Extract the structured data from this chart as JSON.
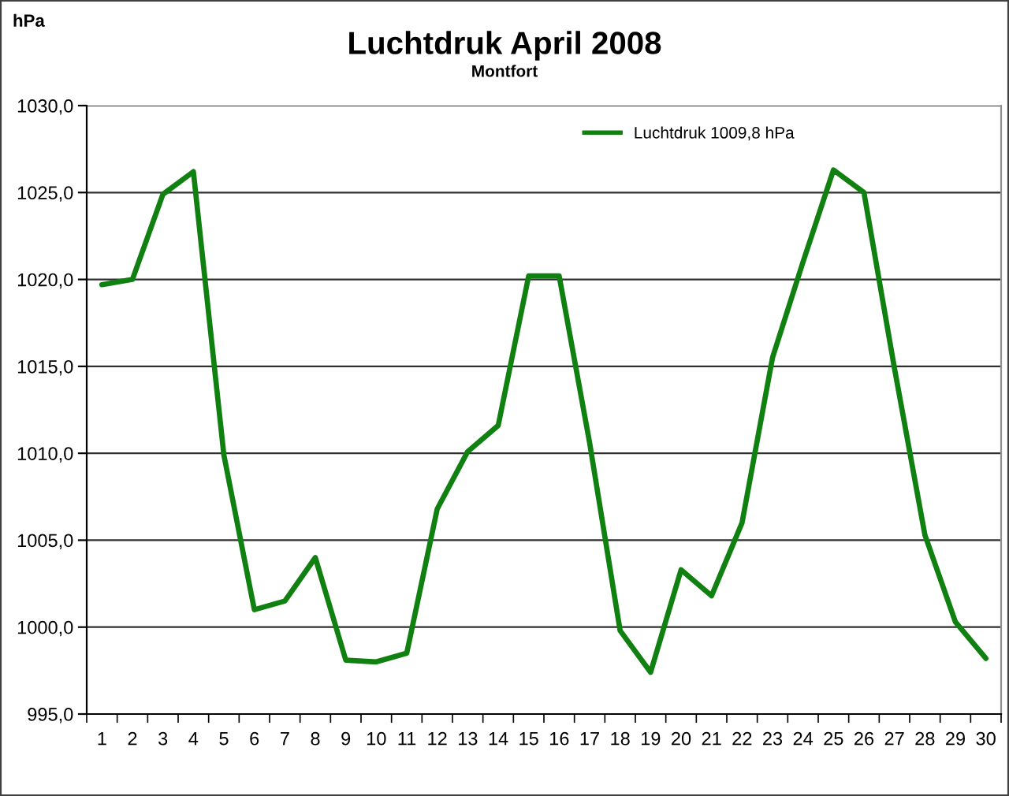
{
  "chart_data": {
    "type": "line",
    "title": "Luchtdruk April 2008",
    "subtitle": "Montfort",
    "ylabel": "hPa",
    "categories": [
      "1",
      "2",
      "3",
      "4",
      "5",
      "6",
      "7",
      "8",
      "9",
      "10",
      "11",
      "12",
      "13",
      "14",
      "15",
      "16",
      "17",
      "18",
      "19",
      "20",
      "21",
      "22",
      "23",
      "24",
      "25",
      "26",
      "27",
      "28",
      "29",
      "30"
    ],
    "series": [
      {
        "name": "Luchtdruk 1009,8 hPa",
        "color": "#108010",
        "values": [
          1019.7,
          1020.0,
          1024.9,
          1026.2,
          1009.9,
          1001.0,
          1001.5,
          1004.0,
          998.1,
          998.0,
          998.5,
          1006.8,
          1010.1,
          1011.6,
          1020.2,
          1020.2,
          1010.6,
          999.8,
          997.4,
          1003.3,
          1001.8,
          1006.0,
          1015.5,
          1021.0,
          1026.3,
          1025.0,
          1014.9,
          1005.3,
          1000.3,
          998.2
        ]
      }
    ],
    "ylim": [
      995,
      1030
    ],
    "yticks": [
      {
        "value": 995,
        "label": "995,0"
      },
      {
        "value": 1000,
        "label": "1000,0"
      },
      {
        "value": 1005,
        "label": "1005,0"
      },
      {
        "value": 1010,
        "label": "1010,0"
      },
      {
        "value": 1015,
        "label": "1015,0"
      },
      {
        "value": 1020,
        "label": "1020,0"
      },
      {
        "value": 1025,
        "label": "1025,0"
      },
      {
        "value": 1030,
        "label": "1030,0"
      }
    ],
    "grid": "y",
    "legend": "top right",
    "marker": "none",
    "line_style": "solid"
  }
}
